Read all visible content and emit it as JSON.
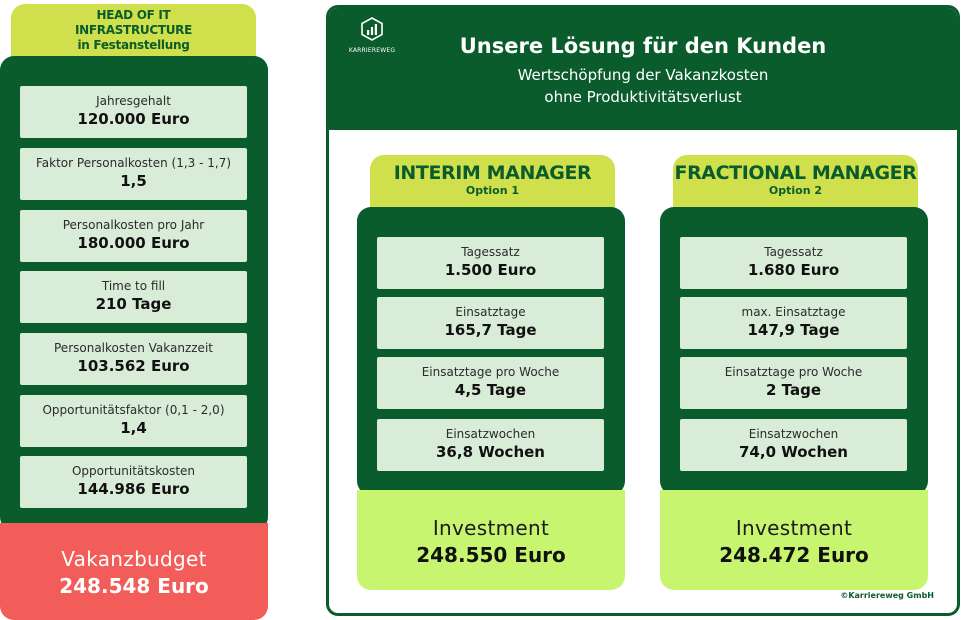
{
  "left": {
    "tab_lines": [
      "HEAD OF IT",
      "INFRASTRUCTURE",
      "in Festanstellung"
    ],
    "cards": [
      {
        "label": "Jahresgehalt",
        "value": "120.000 Euro"
      },
      {
        "label": "Faktor Personalkosten (1,3 - 1,7)",
        "value": "1,5"
      },
      {
        "label": "Personalkosten pro Jahr",
        "value": "180.000 Euro"
      },
      {
        "label": "Time to fill",
        "value": "210 Tage"
      },
      {
        "label": "Personalkosten Vakanzzeit",
        "value": "103.562 Euro"
      },
      {
        "label": "Opportunitätsfaktor (0,1 - 2,0)",
        "value": "1,4"
      },
      {
        "label": "Opportunitätskosten",
        "value": "144.986 Euro"
      }
    ],
    "budget_label": "Vakanzbudget",
    "budget_value": "248.548 Euro"
  },
  "header": {
    "logo_text": "KARRIEREWEG",
    "title": "Unsere Lösung für den Kunden",
    "subtitle_line1": "Wertschöpfung der Vakanzkosten",
    "subtitle_line2": "ohne Produktivitätsverlust"
  },
  "options": [
    {
      "name": "INTERIM MANAGER",
      "sub": "Option 1",
      "cards": [
        {
          "label": "Tagessatz",
          "value": "1.500 Euro"
        },
        {
          "label": "Einsatztage",
          "value": "165,7 Tage"
        },
        {
          "label": "Einsatztage pro Woche",
          "value": "4,5 Tage"
        },
        {
          "label": "Einsatzwochen",
          "value": "36,8 Wochen"
        }
      ],
      "invest_label": "Investment",
      "invest_value": "248.550 Euro"
    },
    {
      "name": "FRACTIONAL MANAGER",
      "sub": "Option 2",
      "cards": [
        {
          "label": "Tagessatz",
          "value": "1.680 Euro"
        },
        {
          "label": "max. Einsatztage",
          "value": "147,9 Tage"
        },
        {
          "label": "Einsatztage pro Woche",
          "value": "2 Tage"
        },
        {
          "label": "Einsatzwochen",
          "value": "74,0 Wochen"
        }
      ],
      "invest_label": "Investment",
      "invest_value": "248.472 Euro"
    }
  ],
  "copyright": "©Karriereweg GmbH",
  "colors": {
    "dark_green": "#0b5c2c",
    "lime": "#cfe04c",
    "card_bg": "#d9ecd8",
    "invest_bg": "#c8f56f",
    "budget_red": "#f25c59"
  }
}
